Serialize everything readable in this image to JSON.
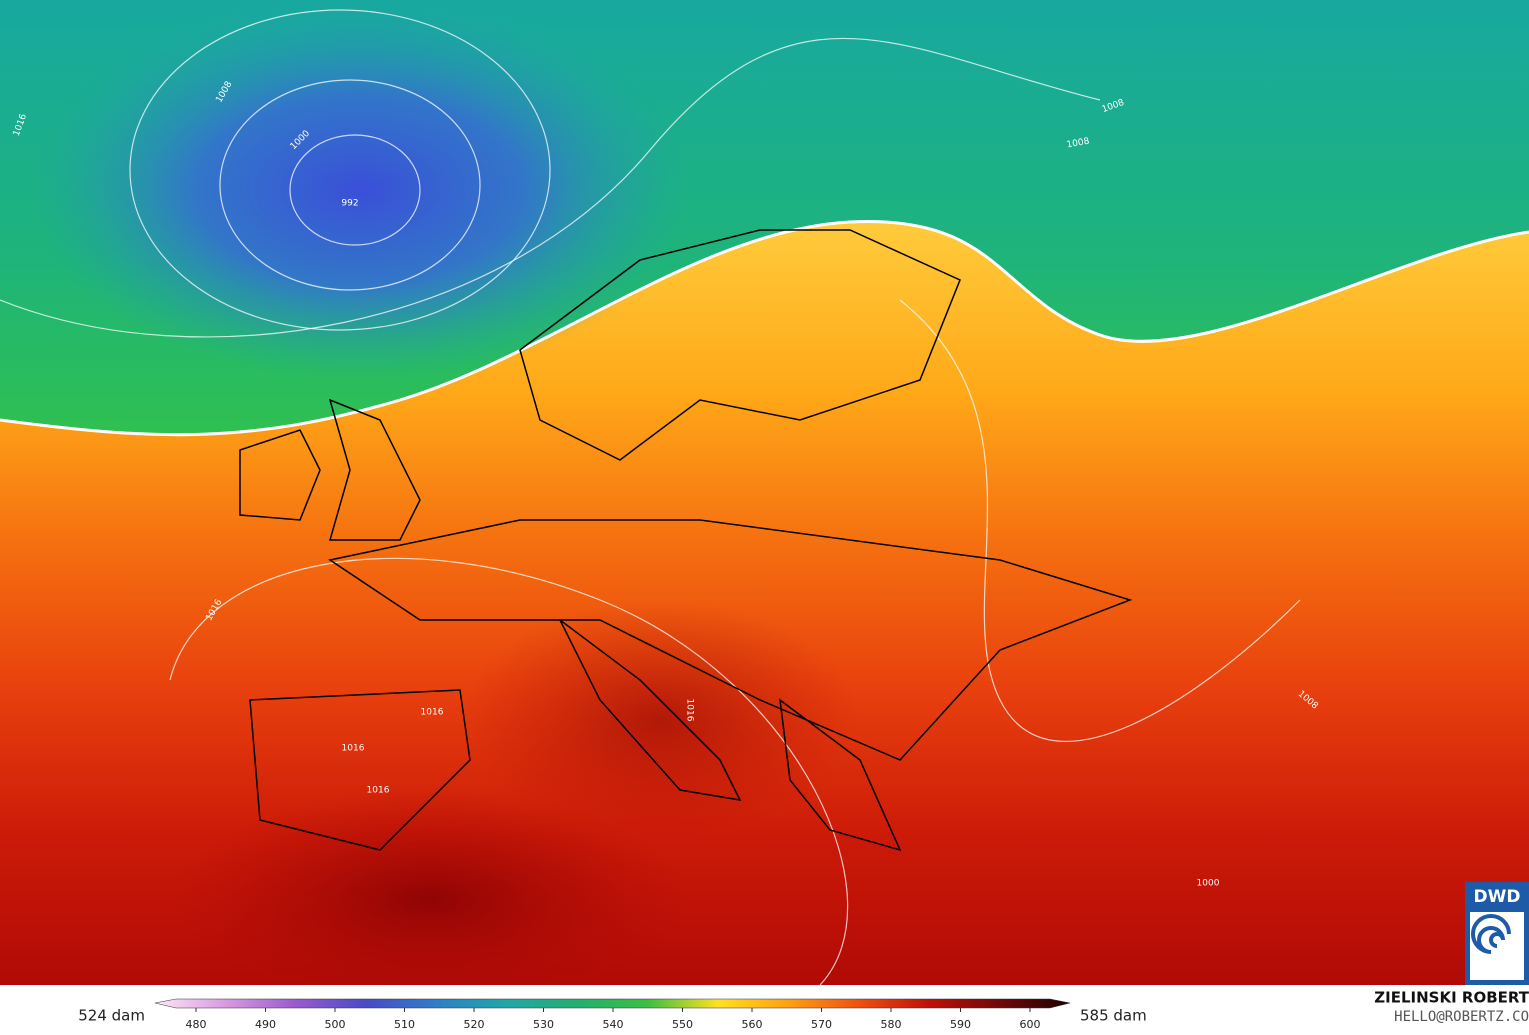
{
  "map": {
    "isobar_labels": [
      "1008",
      "1000",
      "992",
      "1016",
      "1008",
      "1008",
      "1016",
      "1016",
      "1016",
      "1016",
      "1016",
      "1008",
      "1000"
    ],
    "logo": "DWD",
    "colorbar": {
      "ticks": [
        480,
        490,
        500,
        510,
        520,
        530,
        540,
        550,
        560,
        570,
        580,
        590,
        600
      ],
      "colors": [
        "#fde8f6",
        "#d99ae0",
        "#9a5ad0",
        "#4a4ac8",
        "#2f7ec8",
        "#1fa8a8",
        "#20b070",
        "#3cc040",
        "#ffe020",
        "#ffa010",
        "#f05010",
        "#c01008",
        "#700808",
        "#200000"
      ],
      "min_label": "524 dam",
      "max_label": "585 dam"
    },
    "credit": {
      "name": "ZIELINSKI ROBERT",
      "email": "HELLO@ROBERTZ.CO"
    }
  }
}
